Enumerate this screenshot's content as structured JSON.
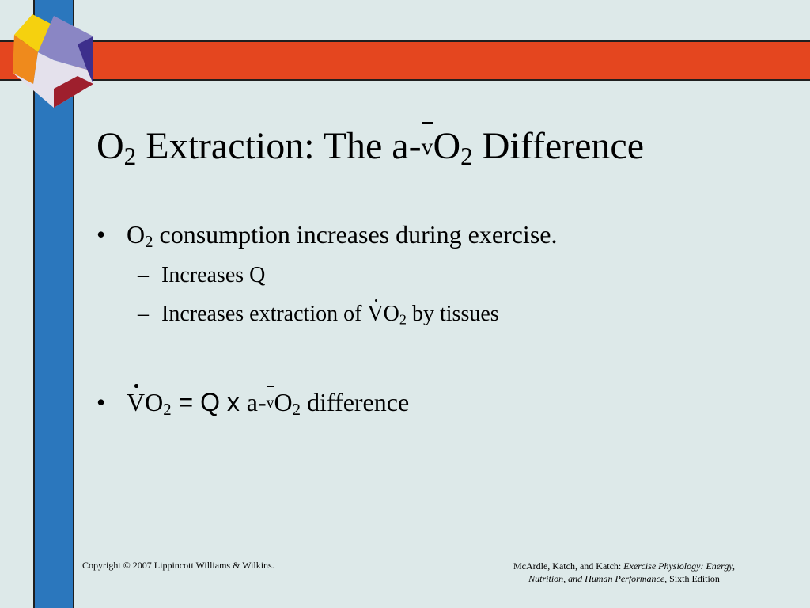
{
  "colors": {
    "background": "#dde9e9",
    "orange_bar": "#e4461f",
    "blue_bar": "#2b77bd",
    "logo_yellow": "#f5d10f",
    "logo_orange": "#ef8a1c",
    "logo_purple": "#8a86c4",
    "logo_dark_purple": "#3d2f8c",
    "logo_red": "#9e1f2d",
    "logo_light": "#e4e1ec"
  },
  "slide": {
    "title": {
      "o": "O",
      "sub1": "2",
      "part1": " Extraction: The a-",
      "v": "v",
      "o2": "O",
      "sub2": "2",
      "part2": " Difference"
    },
    "bullets": [
      {
        "mark": "•",
        "o": "O",
        "sub": "2",
        "text": " consumption increases during exercise."
      },
      {
        "mark": "•",
        "v": "V",
        "o": "O",
        "sub": "2",
        "eq": " = Q  x  ",
        "a": "a-",
        "vbar": "v",
        "o2": "O",
        "sub2": "2",
        "tail": " difference"
      }
    ],
    "subbullets": [
      {
        "mark": "–",
        "text": "Increases Q"
      },
      {
        "mark": "–",
        "text": "Increases extraction of ",
        "v": "V",
        "o": "O",
        "sub": "2",
        "tail": " by tissues"
      }
    ]
  },
  "footer": {
    "copyright": "Copyright © 2007 Lippincott Williams & Wilkins.",
    "citation_authors": "McArdle, Katch, and Katch: ",
    "citation_title_line1": "Exercise Physiology: Energy,",
    "citation_title_line2": "Nutrition, and Human Performance,",
    "citation_edition": " Sixth Edition"
  }
}
